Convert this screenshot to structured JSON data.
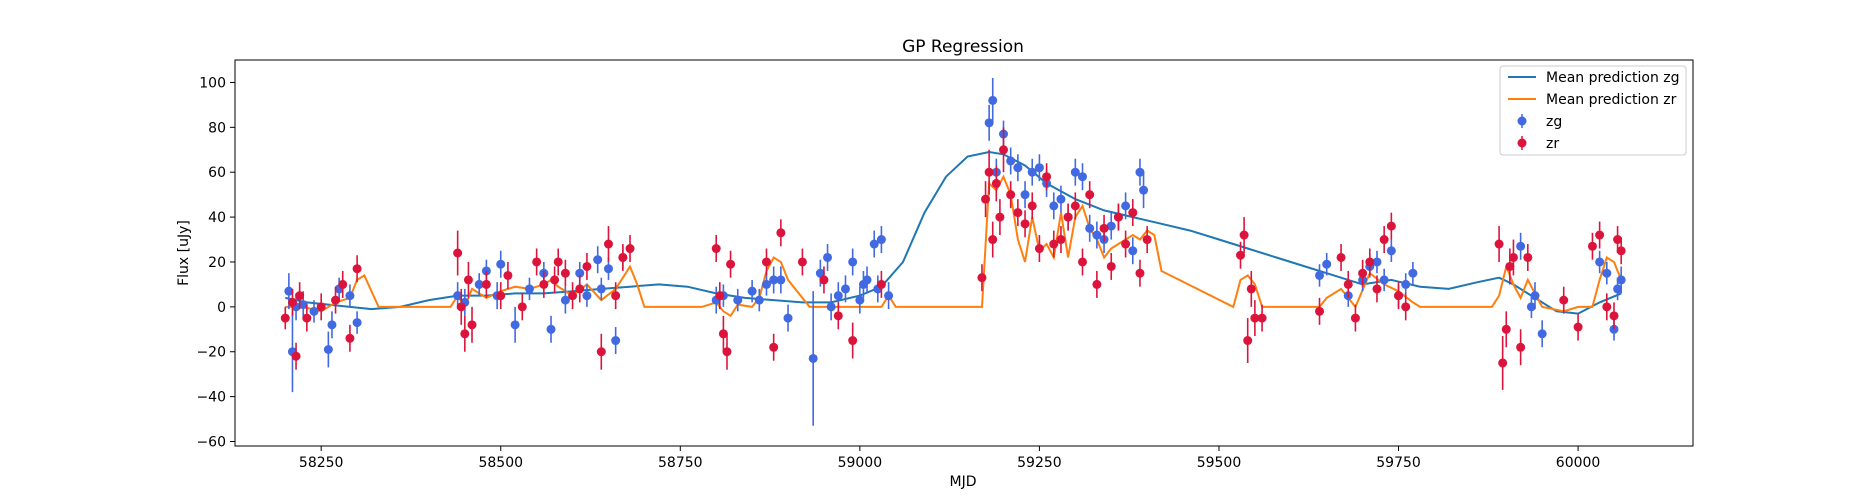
{
  "chart_data": {
    "type": "scatter",
    "title": "GP Regression",
    "xlabel": "MJD",
    "ylabel": "Flux [uJy]",
    "xlim": [
      58130,
      60160
    ],
    "ylim": [
      -62,
      110
    ],
    "xticks": [
      58250,
      58500,
      58750,
      59000,
      59250,
      59500,
      59750,
      60000
    ],
    "yticks": [
      -60,
      -40,
      -20,
      0,
      20,
      40,
      60,
      80,
      100
    ],
    "grid": false,
    "legend_position": "top-right",
    "legend": [
      "Mean prediction zg",
      "Mean prediction zr",
      "zg",
      "zr"
    ],
    "colors": {
      "mean_zg": "#1f77b4",
      "mean_zr": "#ff7f0e",
      "zg": "#4169e1",
      "zr": "#dc143c"
    },
    "lines": [
      {
        "name": "Mean prediction zg",
        "x": [
          58200,
          58230,
          58260,
          58290,
          58320,
          58360,
          58400,
          58440,
          58480,
          58520,
          58560,
          58600,
          58640,
          58680,
          58720,
          58760,
          58800,
          58840,
          58880,
          58920,
          58960,
          59000,
          59030,
          59060,
          59090,
          59120,
          59150,
          59180,
          59200,
          59230,
          59260,
          59300,
          59340,
          59380,
          59420,
          59460,
          59500,
          59540,
          59580,
          59620,
          59660,
          59700,
          59740,
          59780,
          59820,
          59860,
          59890,
          59910,
          59940,
          59970,
          60000,
          60030,
          60060
        ],
        "y": [
          4,
          2,
          1,
          0,
          -1,
          0,
          3,
          5,
          5,
          6,
          6,
          7,
          8,
          9,
          10,
          9,
          6,
          4,
          3,
          2,
          2,
          5,
          9,
          20,
          42,
          58,
          67,
          69,
          68,
          63,
          55,
          48,
          43,
          40,
          37,
          34,
          30,
          26,
          22,
          18,
          14,
          10,
          12,
          9,
          8,
          11,
          13,
          10,
          4,
          -2,
          -3,
          2,
          6
        ]
      },
      {
        "name": "Mean prediction zr",
        "x": [
          58200,
          58225,
          58250,
          58270,
          58290,
          58300,
          58310,
          58330,
          58400,
          58430,
          58440,
          58450,
          58460,
          58480,
          58500,
          58520,
          58540,
          58560,
          58570,
          58580,
          58600,
          58620,
          58640,
          58660,
          58680,
          58690,
          58700,
          58780,
          58800,
          58810,
          58820,
          58830,
          58850,
          58860,
          58870,
          58880,
          58890,
          58900,
          58920,
          58930,
          58950,
          58970,
          58990,
          59010,
          59030,
          59040,
          59050,
          59160,
          59170,
          59180,
          59190,
          59200,
          59210,
          59220,
          59230,
          59240,
          59250,
          59260,
          59270,
          59280,
          59290,
          59300,
          59310,
          59320,
          59330,
          59340,
          59350,
          59360,
          59370,
          59380,
          59390,
          59400,
          59410,
          59420,
          59520,
          59530,
          59540,
          59550,
          59560,
          59640,
          59650,
          59670,
          59690,
          59710,
          59730,
          59750,
          59770,
          59780,
          59880,
          59890,
          59900,
          59910,
          59920,
          59930,
          59950,
          59980,
          60000,
          60020,
          60030,
          60040,
          60050,
          60060
        ],
        "y": [
          0,
          0,
          -2,
          2,
          4,
          12,
          14,
          0,
          0,
          0,
          5,
          0,
          8,
          4,
          7,
          9,
          8,
          10,
          12,
          9,
          5,
          10,
          3,
          8,
          18,
          10,
          0,
          0,
          2,
          -2,
          -4,
          1,
          0,
          4,
          16,
          22,
          20,
          12,
          4,
          0,
          0,
          0,
          0,
          0,
          0,
          5,
          0,
          0,
          0,
          55,
          52,
          58,
          50,
          30,
          20,
          40,
          25,
          28,
          22,
          42,
          22,
          40,
          45,
          35,
          30,
          22,
          26,
          28,
          30,
          32,
          30,
          34,
          32,
          16,
          0,
          12,
          14,
          10,
          0,
          0,
          4,
          8,
          0,
          15,
          10,
          7,
          2,
          0,
          0,
          5,
          18,
          10,
          4,
          12,
          0,
          -2,
          0,
          0,
          12,
          22,
          20,
          12
        ]
      }
    ],
    "series": [
      {
        "name": "zg",
        "x": [
          58205,
          58210,
          58215,
          58225,
          58240,
          58260,
          58265,
          58275,
          58290,
          58300,
          58440,
          58450,
          58470,
          58480,
          58495,
          58500,
          58520,
          58540,
          58560,
          58570,
          58590,
          58610,
          58620,
          58635,
          58640,
          58650,
          58660,
          58670,
          58800,
          58810,
          58830,
          58850,
          58860,
          58870,
          58880,
          58890,
          58900,
          58935,
          58945,
          58955,
          58960,
          58970,
          58980,
          58990,
          59000,
          59005,
          59010,
          59020,
          59025,
          59030,
          59040,
          59180,
          59185,
          59190,
          59200,
          59210,
          59220,
          59230,
          59240,
          59250,
          59260,
          59270,
          59280,
          59290,
          59300,
          59310,
          59320,
          59330,
          59340,
          59350,
          59360,
          59370,
          59380,
          59390,
          59395,
          59640,
          59650,
          59680,
          59700,
          59710,
          59720,
          59730,
          59740,
          59750,
          59760,
          59770,
          59920,
          59935,
          59940,
          59950,
          60030,
          60040,
          60050,
          60055,
          60060
        ],
        "y": [
          7,
          -20,
          0,
          1,
          -2,
          -19,
          -8,
          8,
          5,
          -7,
          5,
          2,
          10,
          16,
          5,
          19,
          -8,
          8,
          15,
          -10,
          3,
          15,
          5,
          21,
          8,
          17,
          -15,
          22,
          3,
          5,
          3,
          7,
          3,
          10,
          12,
          12,
          -5,
          -23,
          15,
          22,
          0,
          5,
          8,
          20,
          3,
          10,
          12,
          28,
          8,
          30,
          5,
          82,
          92,
          60,
          77,
          65,
          62,
          50,
          60,
          62,
          55,
          45,
          48,
          40,
          60,
          58,
          35,
          32,
          30,
          36,
          40,
          45,
          25,
          60,
          52,
          14,
          19,
          5,
          12,
          18,
          20,
          12,
          25,
          5,
          10,
          15,
          27,
          0,
          5,
          -12,
          20,
          15,
          -10,
          8,
          12
        ],
        "err": [
          8,
          18,
          6,
          6,
          5,
          8,
          6,
          5,
          5,
          5,
          6,
          6,
          5,
          5,
          6,
          6,
          8,
          5,
          5,
          6,
          6,
          5,
          5,
          6,
          5,
          5,
          6,
          5,
          6,
          5,
          5,
          5,
          5,
          5,
          6,
          6,
          6,
          30,
          6,
          6,
          6,
          6,
          6,
          6,
          6,
          6,
          6,
          6,
          6,
          6,
          6,
          8,
          10,
          6,
          6,
          6,
          6,
          6,
          6,
          6,
          6,
          6,
          6,
          6,
          6,
          6,
          6,
          6,
          6,
          6,
          6,
          6,
          6,
          6,
          8,
          5,
          5,
          5,
          5,
          5,
          5,
          5,
          5,
          5,
          5,
          5,
          6,
          5,
          6,
          6,
          5,
          5,
          5,
          5,
          6
        ]
      },
      {
        "name": "zr",
        "x": [
          58200,
          58210,
          58215,
          58220,
          58230,
          58250,
          58270,
          58280,
          58290,
          58300,
          58440,
          58445,
          58450,
          58455,
          58460,
          58480,
          58500,
          58510,
          58530,
          58550,
          58560,
          58575,
          58580,
          58590,
          58600,
          58610,
          58620,
          58640,
          58650,
          58660,
          58670,
          58680,
          58800,
          58805,
          58810,
          58815,
          58820,
          58870,
          58880,
          58890,
          58920,
          58950,
          58970,
          58990,
          59030,
          59170,
          59175,
          59180,
          59185,
          59190,
          59195,
          59200,
          59210,
          59220,
          59230,
          59240,
          59250,
          59260,
          59270,
          59280,
          59290,
          59300,
          59310,
          59320,
          59330,
          59340,
          59350,
          59360,
          59370,
          59380,
          59390,
          59400,
          59530,
          59535,
          59540,
          59545,
          59550,
          59560,
          59640,
          59670,
          59680,
          59690,
          59700,
          59710,
          59720,
          59730,
          59740,
          59750,
          59760,
          59890,
          59895,
          59900,
          59905,
          59910,
          59920,
          59930,
          59980,
          60000,
          60020,
          60030,
          60040,
          60050,
          60055,
          60060
        ],
        "y": [
          -5,
          2,
          -22,
          5,
          -5,
          0,
          3,
          10,
          -14,
          17,
          24,
          0,
          -12,
          12,
          -8,
          10,
          5,
          14,
          0,
          20,
          10,
          12,
          20,
          15,
          5,
          8,
          18,
          -20,
          28,
          5,
          22,
          26,
          26,
          5,
          -12,
          -20,
          19,
          20,
          -18,
          33,
          20,
          12,
          -4,
          -15,
          10,
          13,
          48,
          60,
          30,
          55,
          40,
          70,
          50,
          42,
          37,
          45,
          26,
          58,
          28,
          30,
          40,
          45,
          20,
          50,
          10,
          35,
          18,
          40,
          28,
          42,
          15,
          30,
          23,
          32,
          -15,
          8,
          -5,
          -5,
          -2,
          22,
          10,
          -5,
          15,
          20,
          8,
          30,
          36,
          5,
          0,
          28,
          -25,
          -10,
          18,
          22,
          -18,
          22,
          3,
          -9,
          27,
          32,
          0,
          -4,
          30,
          25
        ],
        "err": [
          5,
          6,
          6,
          6,
          6,
          6,
          6,
          6,
          6,
          6,
          10,
          8,
          8,
          8,
          8,
          6,
          6,
          6,
          6,
          6,
          6,
          6,
          6,
          6,
          6,
          6,
          6,
          8,
          8,
          6,
          6,
          6,
          6,
          6,
          8,
          8,
          6,
          6,
          6,
          6,
          6,
          6,
          6,
          8,
          6,
          6,
          8,
          10,
          8,
          8,
          8,
          10,
          6,
          6,
          6,
          6,
          6,
          6,
          6,
          6,
          6,
          6,
          6,
          6,
          6,
          6,
          6,
          6,
          6,
          6,
          6,
          6,
          6,
          8,
          10,
          8,
          8,
          6,
          6,
          6,
          6,
          6,
          6,
          6,
          6,
          6,
          6,
          6,
          6,
          8,
          12,
          8,
          8,
          8,
          8,
          6,
          6,
          6,
          6,
          6,
          6,
          6,
          6,
          6
        ]
      }
    ]
  }
}
